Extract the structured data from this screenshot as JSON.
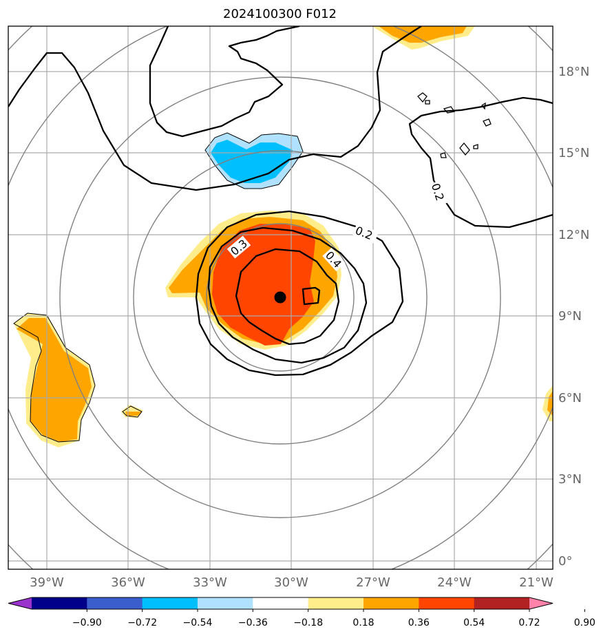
{
  "title": "2024100300 F012",
  "chart_data": {
    "type": "contour",
    "title": "2024100300 F012",
    "lon_ticks": [
      "39°W",
      "36°W",
      "33°W",
      "30°W",
      "27°W",
      "24°W",
      "21°W"
    ],
    "lat_ticks": [
      "18°N",
      "15°N",
      "12°N",
      "9°N",
      "6°N",
      "3°N",
      "0°"
    ],
    "lon_range": [
      -40.4,
      -20.3
    ],
    "lat_range": [
      -0.3,
      19.6
    ],
    "grid": true,
    "storm_center": {
      "lon": -30.4,
      "lat": 9.7
    },
    "range_rings": 5,
    "contour_labels": [
      "0.2",
      "0.3",
      "0.4",
      "0.2"
    ],
    "colorbar": {
      "ticks": [
        "−0.90",
        "−0.72",
        "−0.54",
        "−0.36",
        "−0.18",
        "0.18",
        "0.36",
        "0.54",
        "0.72",
        "0.90"
      ],
      "colors": [
        "#9933cc",
        "#00008b",
        "#3a5fcd",
        "#00bfff",
        "#b0e2ff",
        "#ffffff",
        "#ffec8b",
        "#ffa500",
        "#ff4500",
        "#b22222",
        "#ff82ab"
      ],
      "extend": "both"
    }
  }
}
